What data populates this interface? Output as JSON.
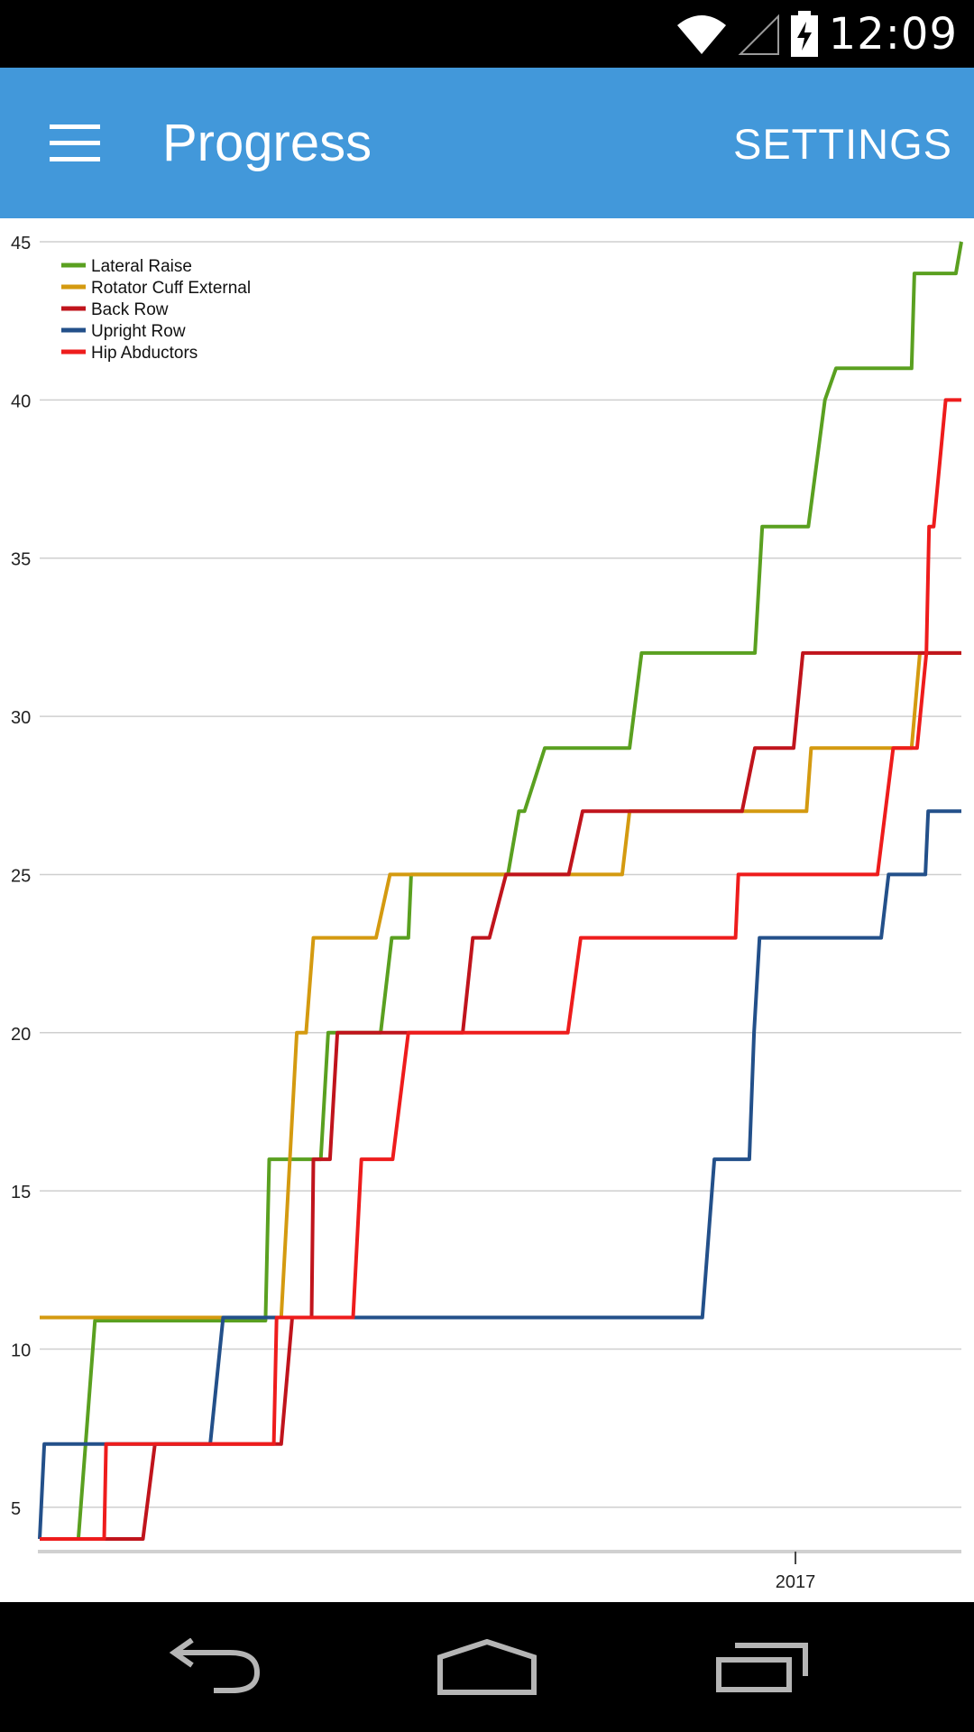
{
  "status_bar": {
    "time": "12:09",
    "icons": [
      "wifi-icon",
      "cell-signal-icon",
      "battery-charging-icon"
    ]
  },
  "app_bar": {
    "menu_icon": "hamburger-menu-icon",
    "title": "Progress",
    "settings_label": "SETTINGS",
    "color": "#4298da"
  },
  "chart_data": {
    "type": "line",
    "title": "",
    "xlabel": "",
    "ylabel": "",
    "x_ticks": [
      {
        "label": "2017",
        "x": 0.82
      }
    ],
    "yticks": [
      5,
      10,
      15,
      20,
      25,
      30,
      35,
      40,
      45
    ],
    "ylim": [
      3.6,
      45
    ],
    "xlim": [
      0,
      1
    ],
    "legend_position": "top-left",
    "grid": "horizontal",
    "series": [
      {
        "name": "Lateral Raise",
        "color": "#5aa020",
        "x": [
          0.035,
          0.042,
          0.06,
          0.068,
          0.245,
          0.249,
          0.305,
          0.313,
          0.37,
          0.382,
          0.4,
          0.403,
          0.508,
          0.52,
          0.526,
          0.548,
          0.64,
          0.653,
          0.776,
          0.784,
          0.834,
          0.852,
          0.864,
          0.946,
          0.949,
          0.994,
          1.0
        ],
        "y": [
          4,
          4,
          10.9,
          10.9,
          10.9,
          16,
          16,
          20,
          20,
          23,
          23,
          25,
          25,
          27,
          27,
          29,
          29,
          32,
          32,
          36,
          36,
          40,
          41,
          41,
          44,
          44,
          45
        ]
      },
      {
        "name": "Rotator Cuff External",
        "color": "#d49a10",
        "x": [
          0.0,
          0.262,
          0.279,
          0.289,
          0.297,
          0.365,
          0.38,
          0.632,
          0.64,
          0.832,
          0.837,
          0.946,
          0.955,
          1.0
        ],
        "y": [
          11,
          11,
          20,
          20,
          23,
          23,
          25,
          25,
          27,
          27,
          29,
          29,
          32,
          32
        ]
      },
      {
        "name": "Back Row",
        "color": "#c0141c",
        "x": [
          0.0,
          0.112,
          0.125,
          0.262,
          0.274,
          0.295,
          0.297,
          0.315,
          0.323,
          0.459,
          0.47,
          0.488,
          0.506,
          0.574,
          0.589,
          0.762,
          0.776,
          0.818,
          0.828,
          1.0
        ],
        "y": [
          4,
          4,
          7,
          7,
          11,
          11,
          16,
          16,
          20,
          20,
          23,
          23,
          25,
          25,
          27,
          27,
          29,
          29,
          32,
          32
        ]
      },
      {
        "name": "Upright Row",
        "color": "#23508a",
        "x": [
          0.0,
          0.005,
          0.185,
          0.199,
          0.719,
          0.732,
          0.77,
          0.775,
          0.781,
          0.913,
          0.921,
          0.961,
          0.964,
          1.0
        ],
        "y": [
          4,
          7,
          7,
          11,
          11,
          16,
          16,
          20,
          23,
          23,
          25,
          25,
          27,
          27
        ]
      },
      {
        "name": "Hip Abductors",
        "color": "#ee1c1c",
        "x": [
          0.0,
          0.07,
          0.072,
          0.254,
          0.257,
          0.34,
          0.349,
          0.383,
          0.4,
          0.573,
          0.587,
          0.755,
          0.758,
          0.909,
          0.926,
          0.952,
          0.962,
          0.965,
          0.97,
          0.983,
          1.0
        ],
        "y": [
          4,
          4,
          7,
          7,
          11,
          11,
          16,
          16,
          20,
          20,
          23,
          23,
          25,
          25,
          29,
          29,
          32,
          36,
          36,
          40,
          40
        ]
      }
    ]
  }
}
